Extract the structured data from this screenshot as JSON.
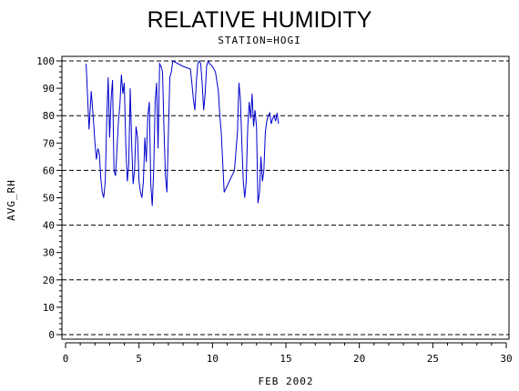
{
  "chart_data": {
    "type": "line",
    "title": "RELATIVE HUMIDITY",
    "subtitle": "STATION=HOGI",
    "xlabel": "FEB 2002",
    "ylabel": "AVG_RH",
    "xlim": [
      0,
      30
    ],
    "ylim": [
      0,
      100
    ],
    "xticks": [
      0,
      5,
      10,
      15,
      20,
      25,
      30
    ],
    "yticks": [
      0,
      10,
      20,
      30,
      40,
      50,
      60,
      70,
      80,
      90,
      100
    ],
    "reference_lines": [
      0,
      20,
      40,
      60,
      80,
      100
    ],
    "grid": false,
    "series_color": "#0000cc",
    "series": [
      {
        "x": [
          1.4,
          1.6,
          1.75,
          1.9,
          2.0,
          2.1,
          2.2,
          2.3,
          2.4,
          2.5,
          2.6,
          2.7,
          2.8,
          2.9,
          3.0,
          3.1,
          3.2,
          3.3,
          3.4,
          3.5,
          3.6,
          3.7,
          3.8,
          3.9,
          4.0,
          4.1,
          4.2,
          4.3,
          4.4,
          4.5,
          4.6,
          4.7,
          4.8,
          4.9,
          5.0,
          5.1,
          5.2,
          5.3,
          5.4,
          5.5,
          5.6,
          5.7,
          5.8,
          5.9,
          6.0,
          6.1,
          6.2,
          6.3,
          6.4,
          6.5,
          6.6,
          6.7,
          6.8,
          6.9,
          7.0,
          7.1,
          7.2,
          7.3,
          8.0,
          8.5,
          8.6,
          8.7,
          8.8,
          8.9,
          9.0,
          9.1,
          9.2,
          9.3,
          9.4,
          9.5,
          9.6,
          9.7,
          9.8,
          10.0,
          10.2,
          10.4,
          10.5,
          10.6,
          10.7,
          10.8,
          11.5,
          11.7,
          11.8,
          11.9,
          12.0,
          12.1,
          12.2,
          12.3,
          12.4,
          12.5,
          12.6,
          12.7,
          12.8,
          12.9,
          13.0,
          13.1,
          13.2,
          13.3,
          13.4,
          13.5,
          13.6,
          13.7,
          13.8,
          13.9,
          14.0,
          14.1,
          14.2,
          14.3,
          14.4,
          14.5
        ],
        "y": [
          99,
          75,
          89,
          78,
          70,
          64,
          68,
          66,
          57,
          52,
          50,
          56,
          78,
          94,
          72,
          86,
          93,
          60,
          58,
          68,
          78,
          84,
          95,
          88,
          92,
          70,
          56,
          62,
          90,
          70,
          55,
          60,
          76,
          72,
          56,
          52,
          50,
          56,
          72,
          63,
          80,
          85,
          55,
          47,
          60,
          85,
          92,
          68,
          99,
          98,
          96,
          75,
          58,
          52,
          73,
          94,
          96,
          100,
          98,
          97,
          92,
          86,
          82,
          92,
          99,
          100,
          99,
          92,
          82,
          88,
          98,
          100,
          99,
          98,
          96,
          89,
          80,
          74,
          63,
          52,
          60,
          74,
          92,
          86,
          70,
          56,
          50,
          56,
          76,
          85,
          79,
          88,
          76,
          82,
          76,
          48,
          52,
          65,
          56,
          60,
          74,
          78,
          80,
          81,
          77,
          79,
          80,
          78,
          81,
          77
        ]
      }
    ]
  }
}
